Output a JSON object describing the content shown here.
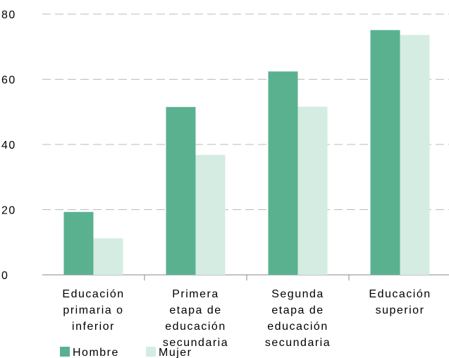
{
  "chart_data": {
    "type": "bar",
    "categories": [
      "Educación\nprimaria o\ninferior",
      "Primera\netapa de\neducación\nsecundaria",
      "Segunda\netapa de\neducación\nsecundaria",
      "Educación\nsuperior"
    ],
    "series": [
      {
        "name": "Hombre",
        "color": "#5ab190",
        "values": [
          19.3,
          51.5,
          62.4,
          75.1
        ]
      },
      {
        "name": "Mujer",
        "color": "#d5ece2",
        "values": [
          11.2,
          36.8,
          51.6,
          73.6
        ]
      }
    ],
    "ylim": [
      0,
      80
    ],
    "yticks": [
      0,
      20,
      40,
      60,
      80
    ],
    "grid": true
  }
}
